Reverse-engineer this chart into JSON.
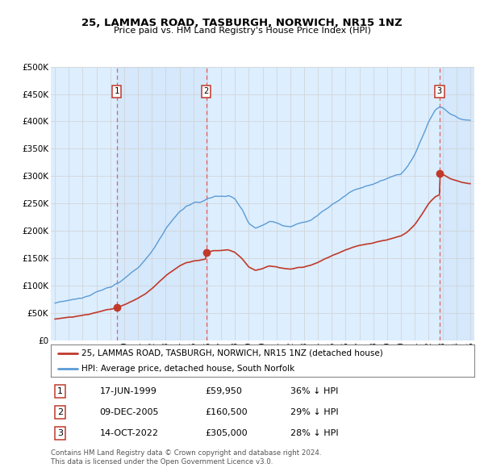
{
  "title": "25, LAMMAS ROAD, TASBURGH, NORWICH, NR15 1NZ",
  "subtitle": "Price paid vs. HM Land Registry's House Price Index (HPI)",
  "sale_times": [
    1999.46,
    2005.93,
    2022.79
  ],
  "sale_prices": [
    59950,
    160500,
    305000
  ],
  "sale_labels": [
    "1",
    "2",
    "3"
  ],
  "hpi_label": "HPI: Average price, detached house, South Norfolk",
  "property_label": "25, LAMMAS ROAD, TASBURGH, NORWICH, NR15 1NZ (detached house)",
  "table_rows": [
    [
      "1",
      "17-JUN-1999",
      "£59,950",
      "36% ↓ HPI"
    ],
    [
      "2",
      "09-DEC-2005",
      "£160,500",
      "29% ↓ HPI"
    ],
    [
      "3",
      "14-OCT-2022",
      "£305,000",
      "28% ↓ HPI"
    ]
  ],
  "footer1": "Contains HM Land Registry data © Crown copyright and database right 2024.",
  "footer2": "This data is licensed under the Open Government Licence v3.0.",
  "hpi_color": "#5b9bd5",
  "sale_color": "#c0392b",
  "vline_color": "#e74c3c",
  "grid_color": "#d0d0d0",
  "bg_color": "#ddeeff",
  "ylim": [
    0,
    500000
  ],
  "xlim_start": 1994.7,
  "xlim_end": 2025.3
}
